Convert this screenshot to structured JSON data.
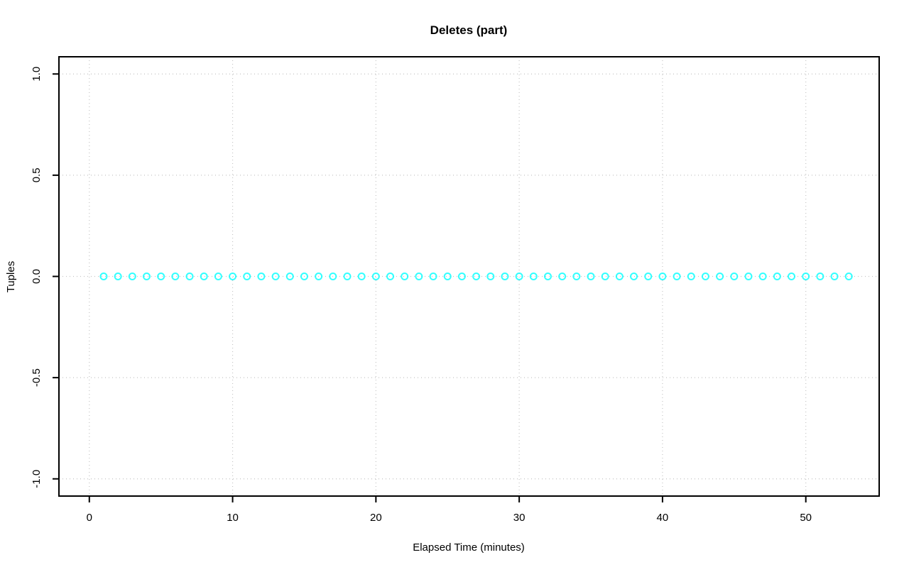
{
  "chart_data": {
    "type": "scatter",
    "title": "Deletes (part)",
    "xlabel": "Elapsed Time (minutes)",
    "ylabel": "Tuples",
    "xlim": [
      -2.12,
      55.12
    ],
    "ylim": [
      -1.085,
      1.085
    ],
    "x_ticks": [
      0,
      10,
      20,
      30,
      40,
      50
    ],
    "x_tick_labels": [
      "0",
      "10",
      "20",
      "30",
      "40",
      "50"
    ],
    "y_ticks": [
      -1.0,
      -0.5,
      0.0,
      0.5,
      1.0
    ],
    "y_tick_labels": [
      "-1.0",
      "-0.5",
      "0.0",
      "0.5",
      "1.0"
    ],
    "grid": {
      "show": true,
      "color": "#C4C4C4",
      "style": "dotted"
    },
    "axis_color": "#000000",
    "legend": "none",
    "series": [
      {
        "name": "Deletes (part)",
        "marker": "open-circle",
        "color": "#00FFFF",
        "x": [
          1,
          2,
          3,
          4,
          5,
          6,
          7,
          8,
          9,
          10,
          11,
          12,
          13,
          14,
          15,
          16,
          17,
          18,
          19,
          20,
          21,
          22,
          23,
          24,
          25,
          26,
          27,
          28,
          29,
          30,
          31,
          32,
          33,
          34,
          35,
          36,
          37,
          38,
          39,
          40,
          41,
          42,
          43,
          44,
          45,
          46,
          47,
          48,
          49,
          50,
          51,
          52,
          53
        ],
        "y": [
          0,
          0,
          0,
          0,
          0,
          0,
          0,
          0,
          0,
          0,
          0,
          0,
          0,
          0,
          0,
          0,
          0,
          0,
          0,
          0,
          0,
          0,
          0,
          0,
          0,
          0,
          0,
          0,
          0,
          0,
          0,
          0,
          0,
          0,
          0,
          0,
          0,
          0,
          0,
          0,
          0,
          0,
          0,
          0,
          0,
          0,
          0,
          0,
          0,
          0,
          0,
          0,
          0
        ]
      }
    ]
  }
}
